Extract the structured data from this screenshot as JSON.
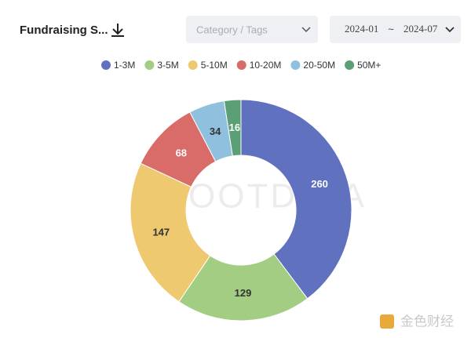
{
  "header": {
    "title": "Fundraising S...",
    "filter_placeholder": "Category / Tags",
    "date_start": "2024-01",
    "date_separator": "~",
    "date_end": "2024-07"
  },
  "chart_data": {
    "type": "donut",
    "categories": [
      "1-3M",
      "3-5M",
      "5-10M",
      "10-20M",
      "20-50M",
      "50M+"
    ],
    "values": [
      260,
      129,
      147,
      68,
      34,
      16
    ],
    "colors": [
      "#6071c0",
      "#a2cd82",
      "#eec96f",
      "#d96b68",
      "#8fc0dd",
      "#5b9f76"
    ],
    "legend": "top"
  },
  "watermarks": [
    "OOTDATA",
    "金色财经"
  ]
}
